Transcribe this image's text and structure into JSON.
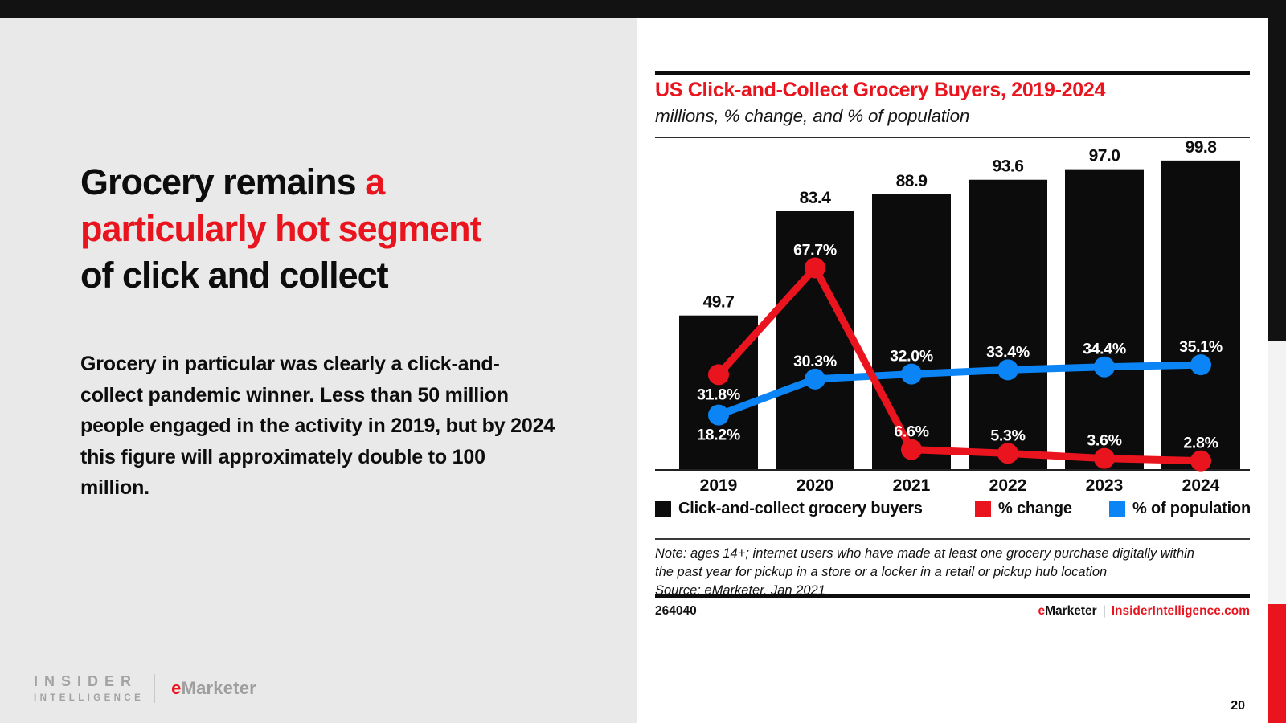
{
  "page": {
    "page_number": "20"
  },
  "colors": {
    "accent_red": "#e9141e",
    "line_blue": "#0b84f6",
    "bar_black": "#0c0c0c",
    "left_bg": "#e9e9e9",
    "top_bar_black": "#121212",
    "strip_gray": "#f3f3f3",
    "logo_gray": "#a3a3a3"
  },
  "left_panel": {
    "heading": {
      "pre": "Grocery remains ",
      "highlight": "a particularly hot segment",
      "post": " of click and collect"
    },
    "paragraph": "Grocery in particular was clearly a click-and-collect pandemic winner. Less than 50 million people engaged in the activity in 2019, but by 2024 this figure will approximately double to 100 million.",
    "logo": {
      "insider_line1": "INSIDER",
      "insider_line2": "INTELLIGENCE",
      "emarketer_e": "e",
      "emarketer_rest": "Marketer"
    }
  },
  "chart_panel": {
    "title": "US Click-and-Collect Grocery Buyers, 2019-2024",
    "subtitle": "millions, % change, and % of population",
    "note_line1": "Note: ages 14+; internet users who have made at least one grocery purchase digitally within",
    "note_line2": "the past year for pickup in a store or a locker in a retail or pickup hub location",
    "source": "Source: eMarketer, Jan 2021",
    "chart_id": "264040",
    "footer": {
      "brand_e": "e",
      "brand_rest": "Marketer",
      "separator": "|",
      "site": "InsiderIntelligence.com"
    }
  },
  "chart_data": {
    "type": "bar",
    "title": "US Click-and-Collect Grocery Buyers, 2019-2024",
    "subtitle": "millions, % change, and % of population",
    "categories": [
      "2019",
      "2020",
      "2021",
      "2022",
      "2023",
      "2024"
    ],
    "series": [
      {
        "name": "Click-and-collect grocery buyers",
        "type": "bar",
        "unit": "millions",
        "color": "#0c0c0c",
        "values": [
          49.7,
          83.4,
          88.9,
          93.6,
          97.0,
          99.8
        ],
        "labels": [
          "49.7",
          "83.4",
          "88.9",
          "93.6",
          "97.0",
          "99.8"
        ]
      },
      {
        "name": "% change",
        "type": "line",
        "unit": "%",
        "color": "#e9141e",
        "values": [
          31.8,
          67.7,
          6.6,
          5.3,
          3.6,
          2.8
        ],
        "labels": [
          "31.8%",
          "67.7%",
          "6.6%",
          "5.3%",
          "3.6%",
          "2.8%"
        ]
      },
      {
        "name": "% of population",
        "type": "line",
        "unit": "%",
        "color": "#0b84f6",
        "values": [
          18.2,
          30.3,
          32.0,
          33.4,
          34.4,
          35.1
        ],
        "labels": [
          "18.2%",
          "30.3%",
          "32.0%",
          "33.4%",
          "34.4%",
          "35.1%"
        ]
      }
    ],
    "legend_position": "bottom",
    "gridlines": false,
    "y_axis_visible": false,
    "bar_axis_max": 99.8,
    "percent_axis_visible_range": [
      0,
      67.7
    ]
  }
}
